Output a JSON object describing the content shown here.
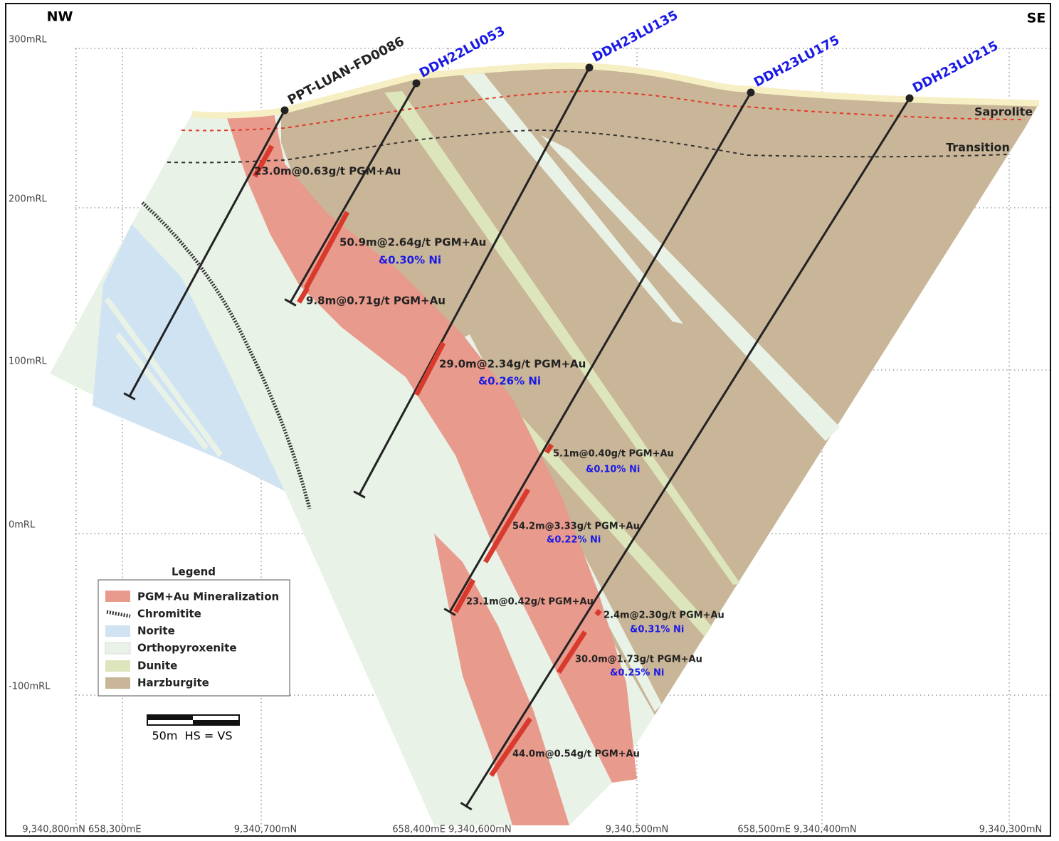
{
  "directions": {
    "left": "NW",
    "right": "SE"
  },
  "elevations": [
    "300mRL",
    "200mRL",
    "100mRL",
    "0mRL",
    "-100mRL"
  ],
  "surfaces": [
    "Saprolite",
    "Transition"
  ],
  "drill_holes": [
    "PPT-LUAN-FD0086",
    "DDH22LU053",
    "DDH23LU135",
    "DDH23LU175",
    "DDH23LU215"
  ],
  "intercepts": [
    {
      "text": "23.0m@0.63g/t PGM+Au"
    },
    {
      "text": "50.9m@2.64g/t PGM+Au",
      "ni": "&0.30% Ni"
    },
    {
      "text": "9.8m@0.71g/t PGM+Au"
    },
    {
      "text": "29.0m@2.34g/t PGM+Au",
      "ni": "&0.26% Ni"
    },
    {
      "text": "5.1m@0.40g/t PGM+Au",
      "ni": "&0.10% Ni"
    },
    {
      "text": "54.2m@3.33g/t PGM+Au",
      "ni": "&0.22% Ni"
    },
    {
      "text": "23.1m@0.42g/t PGM+Au"
    },
    {
      "text": "2.4m@2.30g/t PGM+Au",
      "ni": "&0.31% Ni"
    },
    {
      "text": "30.0m@1.73g/t PGM+Au",
      "ni": "&0.25% Ni"
    },
    {
      "text": "44.0m@0.54g/t PGM+Au"
    }
  ],
  "legend": {
    "title": "Legend",
    "items": [
      "PGM+Au Mineralization",
      "Chromitite",
      "Norite",
      "Orthopyroxenite",
      "Dunite",
      "Harzburgite"
    ]
  },
  "scale": "50m  HS = VS",
  "coordinates": [
    "9,340,800mN 658,300mE",
    "9,340,700mN",
    "658,400mE 9,340,600mN",
    "9,340,500mN",
    "658,500mE 9,340,400mN",
    "9,340,300mN"
  ]
}
